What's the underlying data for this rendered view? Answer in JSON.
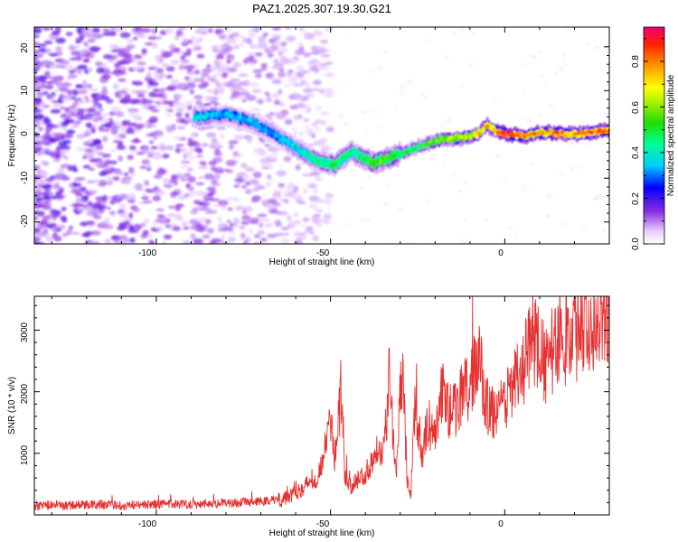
{
  "chart_data": [
    {
      "type": "heatmap",
      "title": "PAZ1.2025.307.19.30.G21",
      "xlabel": "Height of straight line (km)",
      "ylabel": "Frequency (Hz)",
      "xlim": [
        -135,
        30
      ],
      "ylim": [
        -25,
        24.5
      ],
      "x_ticks": [
        -100,
        -50,
        0
      ],
      "x_tick_labels": [
        "-100",
        "-50",
        "0"
      ],
      "y_ticks": [
        20,
        10,
        0,
        -10,
        -20
      ],
      "y_tick_labels": [
        "20",
        "10",
        "0",
        "-10",
        "-20"
      ],
      "colorbar": {
        "label": "Normalized spectral amplitude",
        "range": [
          0,
          0.95
        ],
        "ticks": [
          0.0,
          0.2,
          0.4,
          0.6,
          0.8
        ],
        "tick_labels": [
          "0.0",
          "0.2",
          "0.4",
          "0.6",
          "0.8"
        ]
      },
      "ridge": {
        "x": [
          -89,
          -80,
          -73,
          -66,
          -60,
          -54,
          -49,
          -44,
          -38,
          -32,
          -27,
          -22,
          -17,
          -12,
          -8,
          -5,
          -2,
          2,
          6,
          10,
          15,
          20,
          25,
          30
        ],
        "y": [
          4,
          4.5,
          3,
          0,
          -3,
          -6,
          -7,
          -4,
          -6.5,
          -5,
          -3.5,
          -2,
          -1,
          -0.8,
          0,
          2,
          0.5,
          0,
          -0.5,
          0.5,
          0.3,
          0,
          0.5,
          1
        ],
        "amplitude": [
          0.35,
          0.3,
          0.32,
          0.3,
          0.35,
          0.4,
          0.45,
          0.4,
          0.5,
          0.5,
          0.45,
          0.5,
          0.55,
          0.6,
          0.65,
          0.7,
          0.75,
          0.85,
          0.75,
          0.7,
          0.8,
          0.72,
          0.78,
          0.75
        ]
      }
    },
    {
      "type": "line",
      "title": "",
      "xlabel": "Height of straight line (km)",
      "ylabel": "SNR (10 * v/v)",
      "xlim": [
        -135,
        30
      ],
      "ylim": [
        0,
        3550
      ],
      "x_ticks": [
        -100,
        -50,
        0
      ],
      "x_tick_labels": [
        "-100",
        "-50",
        "0"
      ],
      "y_ticks": [
        1000,
        2000,
        3000
      ],
      "y_tick_labels": [
        "1000",
        "2000",
        "3000"
      ],
      "series": [
        {
          "name": "SNR",
          "color": "#e83030",
          "x": [
            -135,
            -130,
            -125,
            -120,
            -115,
            -110,
            -105,
            -100,
            -95,
            -90,
            -85,
            -80,
            -75,
            -70,
            -65,
            -62,
            -60,
            -58,
            -56,
            -54,
            -52,
            -50,
            -49,
            -48,
            -47,
            -46,
            -45,
            -44,
            -42,
            -40,
            -38,
            -36,
            -35,
            -34,
            -33,
            -32,
            -31,
            -30,
            -29,
            -28,
            -27,
            -26,
            -25,
            -24,
            -22,
            -20,
            -18,
            -16,
            -14,
            -12,
            -10,
            -8,
            -7,
            -6,
            -5,
            -4,
            -2,
            0,
            2,
            4,
            6,
            8,
            10,
            12,
            14,
            16,
            18,
            20,
            22,
            24,
            26,
            28,
            30
          ],
          "y": [
            150,
            160,
            150,
            170,
            160,
            155,
            165,
            170,
            175,
            180,
            185,
            190,
            200,
            215,
            260,
            330,
            400,
            450,
            520,
            600,
            900,
            1650,
            900,
            1300,
            2050,
            700,
            500,
            450,
            600,
            650,
            900,
            1200,
            900,
            1500,
            2600,
            1200,
            800,
            2200,
            2000,
            600,
            250,
            1800,
            1400,
            900,
            1500,
            1300,
            2000,
            1700,
            1700,
            2100,
            1900,
            2600,
            2400,
            2000,
            1800,
            1600,
            1800,
            1700,
            2200,
            2000,
            2500,
            3000,
            2600,
            2400,
            2700,
            3000,
            2800,
            2950,
            3100,
            3050,
            3250,
            3400,
            3300
          ]
        }
      ]
    }
  ]
}
